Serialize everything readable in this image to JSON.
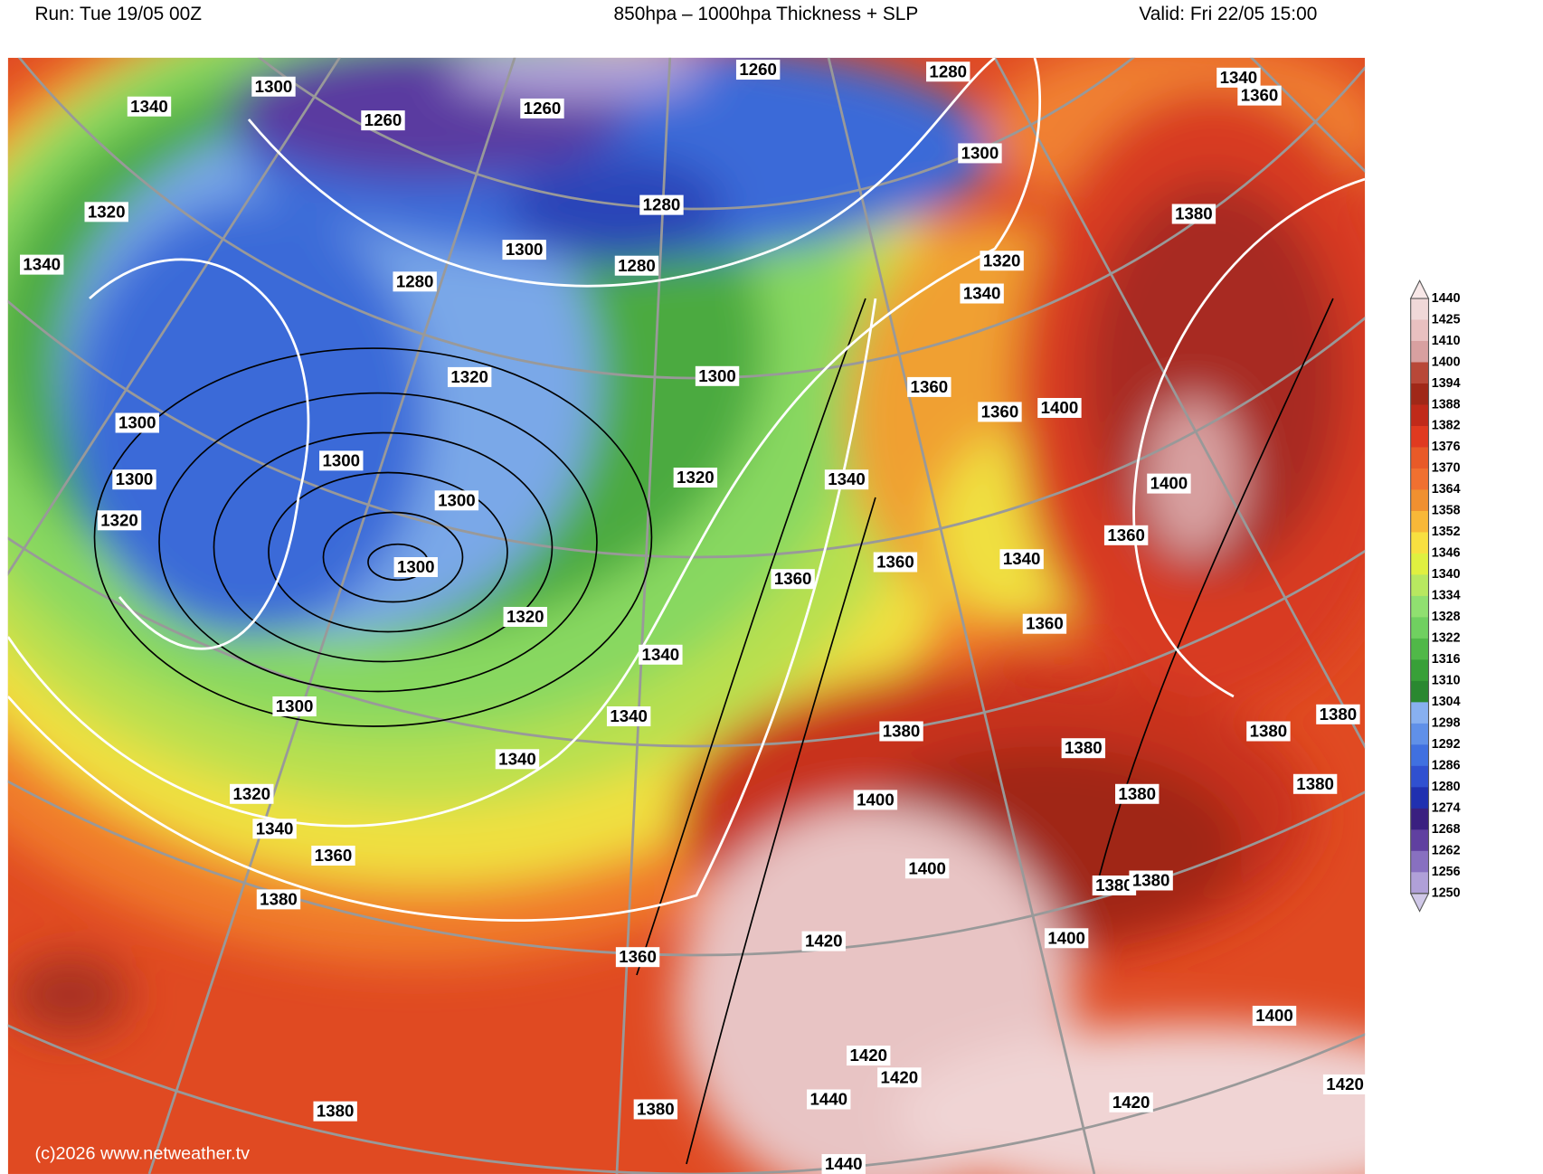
{
  "header": {
    "run": "Run: Tue 19/05 00Z",
    "title": "850hpa – 1000hpa Thickness + SLP",
    "valid": "Valid: Fri 22/05 15:00"
  },
  "map": {
    "contour_labels": [
      1300,
      1340,
      1260,
      1260,
      1260,
      1280,
      1340,
      1360,
      1320,
      1340,
      1280,
      1300,
      1280,
      1280,
      1300,
      1380,
      1320,
      1340,
      1320,
      1300,
      1360,
      1360,
      1400,
      1300,
      1300,
      1300,
      1400,
      1320,
      1340,
      1300,
      1320,
      1360,
      1300,
      1360,
      1340,
      1360,
      1320,
      1360,
      1340,
      1300,
      1340,
      1380,
      1380,
      1380,
      1380,
      1340,
      1380,
      1380,
      1320,
      1400,
      1340,
      1360,
      1400,
      1380,
      1380,
      1380,
      1420,
      1400,
      1360,
      1400,
      1420,
      1420,
      1440,
      1420,
      1420,
      1380,
      1380,
      1440
    ],
    "copyright": "(c)2026 www.netweather.tv"
  },
  "colorbar": {
    "labels": [
      1440,
      1425,
      1410,
      1400,
      1394,
      1388,
      1382,
      1376,
      1370,
      1364,
      1358,
      1352,
      1346,
      1340,
      1334,
      1328,
      1322,
      1316,
      1310,
      1304,
      1298,
      1292,
      1286,
      1280,
      1274,
      1268,
      1262,
      1256,
      1250
    ]
  }
}
